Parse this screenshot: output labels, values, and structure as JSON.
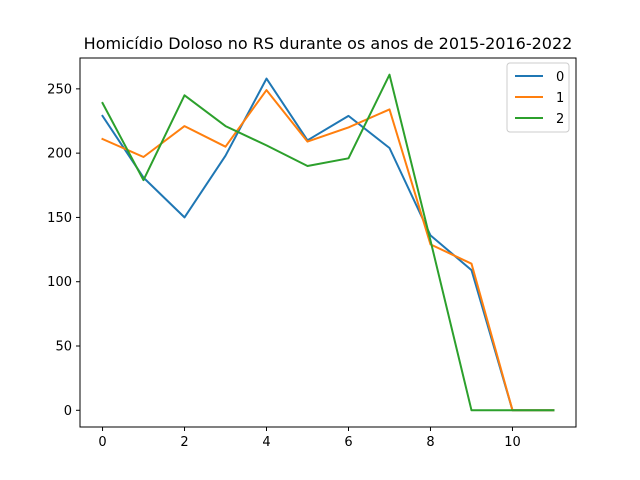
{
  "chart_data": {
    "type": "line",
    "title": "Homicídio Doloso no RS durante os anos de 2015-2016-2022",
    "xlabel": "",
    "ylabel": "",
    "x": [
      0,
      1,
      2,
      3,
      4,
      5,
      6,
      7,
      8,
      9,
      10,
      11
    ],
    "xlim": [
      -0.55,
      11.55
    ],
    "ylim": [
      -13,
      274
    ],
    "xticks": [
      0,
      2,
      4,
      6,
      8,
      10
    ],
    "yticks": [
      0,
      50,
      100,
      150,
      200,
      250
    ],
    "grid": false,
    "legend_position": "top-right",
    "series": [
      {
        "name": "0",
        "color": "#1f77b4",
        "values": [
          229,
          181,
          150,
          198,
          258,
          210,
          229,
          204,
          136,
          109,
          0,
          0
        ]
      },
      {
        "name": "1",
        "color": "#ff7f0e",
        "values": [
          211,
          197,
          221,
          205,
          249,
          209,
          220,
          234,
          129,
          114,
          0,
          0
        ]
      },
      {
        "name": "2",
        "color": "#2ca02c",
        "values": [
          239,
          179,
          245,
          221,
          206,
          190,
          196,
          261,
          132,
          0,
          0,
          0
        ]
      }
    ]
  }
}
